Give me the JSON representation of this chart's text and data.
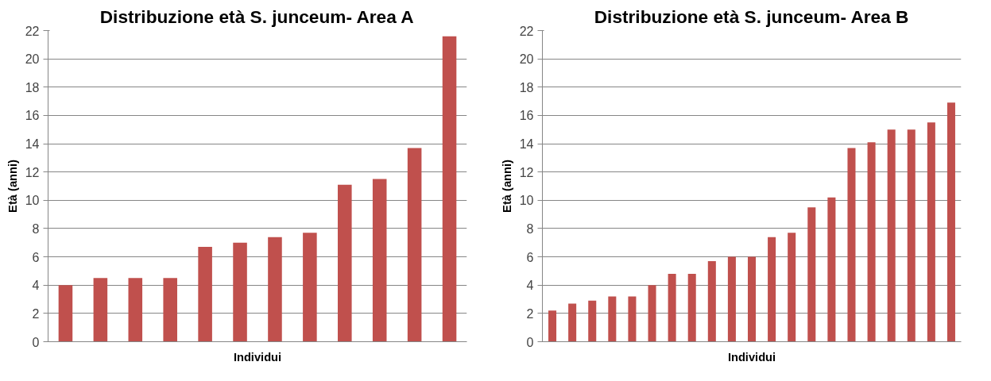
{
  "chart_data": [
    {
      "type": "bar",
      "title": "Distribuzione età S. junceum- Area A",
      "xlabel": "Individui",
      "ylabel": "Età (anni)",
      "categories": [
        null,
        null,
        null,
        null,
        null,
        null,
        null,
        null,
        null,
        null,
        null,
        null
      ],
      "series": [
        {
          "color": "#c0504d",
          "values": [
            4.0,
            4.5,
            4.5,
            4.5,
            6.7,
            7.0,
            7.4,
            7.7,
            11.1,
            11.5,
            13.7,
            21.6
          ]
        }
      ],
      "ylim": [
        0,
        22
      ],
      "yticks": [
        0,
        2,
        4,
        6,
        8,
        10,
        12,
        14,
        16,
        18,
        20,
        22
      ],
      "grid": "y",
      "tick_labels": "y"
    },
    {
      "type": "bar",
      "title": "Distribuzione età S. junceum- Area B",
      "xlabel": "Individui",
      "ylabel": "Età (anni)",
      "categories": [
        null,
        null,
        null,
        null,
        null,
        null,
        null,
        null,
        null,
        null,
        null,
        null,
        null,
        null,
        null,
        null,
        null,
        null,
        null,
        null,
        null
      ],
      "series": [
        {
          "color": "#c0504d",
          "values": [
            2.2,
            2.7,
            2.9,
            3.2,
            3.2,
            4.0,
            4.8,
            4.8,
            5.7,
            6.0,
            6.0,
            7.4,
            7.7,
            9.5,
            10.2,
            13.7,
            14.1,
            15.0,
            15.0,
            15.5,
            16.9
          ]
        }
      ],
      "ylim": [
        0,
        22
      ],
      "yticks": [
        0,
        2,
        4,
        6,
        8,
        10,
        12,
        14,
        16,
        18,
        20,
        22
      ],
      "grid": "y",
      "tick_labels": "y"
    }
  ]
}
